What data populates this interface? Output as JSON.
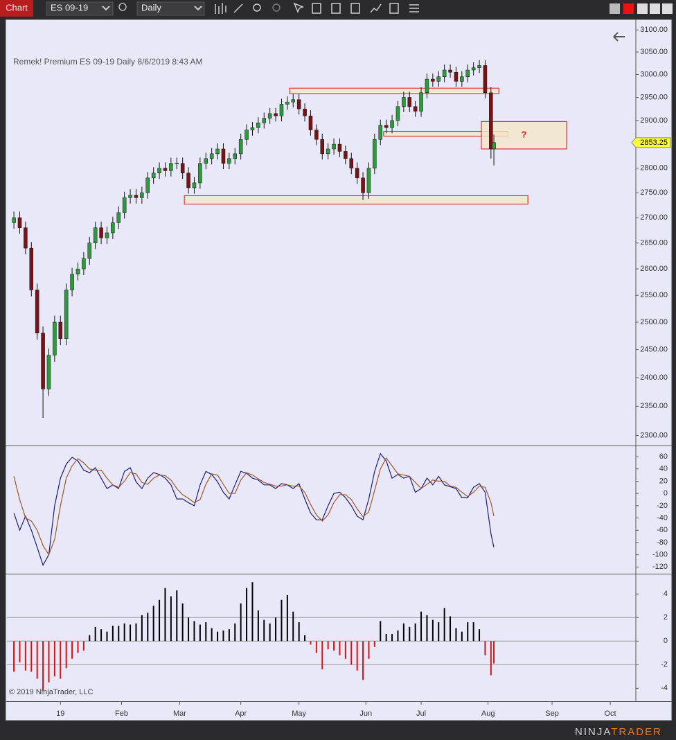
{
  "toolbar": {
    "tab": "Chart",
    "instrument": "ES 09-19",
    "period": "Daily"
  },
  "footer": {
    "copyright": "© 2019 NinjaTrader, LLC",
    "logo_a": "NINJA",
    "logo_b": "TRADER"
  },
  "chart_data": [
    {
      "type": "candlestick",
      "title": "Remek!  Premium  ES 09-19  Daily  8/6/2019 8:43 AM",
      "x": [
        0,
        2,
        4,
        6,
        8,
        10,
        12,
        14,
        16,
        18,
        20,
        22,
        24,
        26,
        28,
        30,
        32,
        34,
        36,
        38,
        40,
        42,
        44,
        46,
        48,
        50,
        52,
        54,
        56,
        58,
        60,
        62,
        64,
        66,
        68,
        70,
        72,
        74,
        76,
        78,
        80,
        82,
        84,
        86,
        88,
        90,
        92,
        94,
        96,
        98,
        100,
        102,
        104,
        106,
        108,
        110,
        112,
        114,
        116,
        118,
        120,
        122,
        124,
        126,
        128,
        130,
        132,
        134,
        136,
        138,
        140,
        142,
        144,
        146,
        148,
        150,
        152,
        154,
        156,
        158,
        160,
        162,
        164,
        165
      ],
      "open": [
        2690,
        2700,
        2680,
        2640,
        2560,
        2480,
        2380,
        2440,
        2500,
        2470,
        2560,
        2590,
        2600,
        2620,
        2650,
        2680,
        2660,
        2670,
        2690,
        2710,
        2740,
        2745,
        2740,
        2750,
        2780,
        2790,
        2800,
        2795,
        2810,
        2810,
        2790,
        2760,
        2770,
        2810,
        2820,
        2830,
        2840,
        2810,
        2820,
        2830,
        2860,
        2880,
        2885,
        2895,
        2905,
        2915,
        2910,
        2935,
        2940,
        2945,
        2925,
        2910,
        2880,
        2860,
        2830,
        2840,
        2850,
        2835,
        2820,
        2800,
        2780,
        2750,
        2800,
        2860,
        2890,
        2885,
        2900,
        2930,
        2950,
        2930,
        2920,
        2960,
        2990,
        2985,
        2995,
        3010,
        3005,
        2985,
        2995,
        3010,
        3015,
        3020,
        2960,
        2840
      ],
      "high": [
        2712,
        2712,
        2692,
        2652,
        2572,
        2492,
        2452,
        2512,
        2512,
        2572,
        2602,
        2612,
        2632,
        2662,
        2692,
        2692,
        2682,
        2702,
        2722,
        2752,
        2757,
        2757,
        2762,
        2792,
        2802,
        2812,
        2812,
        2822,
        2822,
        2822,
        2802,
        2782,
        2822,
        2832,
        2842,
        2852,
        2852,
        2832,
        2842,
        2872,
        2892,
        2897,
        2907,
        2917,
        2927,
        2927,
        2947,
        2952,
        2957,
        2957,
        2937,
        2922,
        2892,
        2872,
        2852,
        2862,
        2862,
        2847,
        2832,
        2812,
        2792,
        2812,
        2872,
        2902,
        2902,
        2912,
        2942,
        2962,
        2962,
        2942,
        2972,
        3002,
        3002,
        3007,
        3022,
        3022,
        3017,
        3007,
        3022,
        3027,
        3032,
        3032,
        2972,
        2870
      ],
      "low": [
        2678,
        2668,
        2628,
        2548,
        2468,
        2330,
        2368,
        2428,
        2458,
        2458,
        2548,
        2578,
        2588,
        2608,
        2638,
        2648,
        2648,
        2658,
        2678,
        2698,
        2728,
        2728,
        2728,
        2738,
        2768,
        2778,
        2783,
        2783,
        2798,
        2778,
        2748,
        2748,
        2758,
        2798,
        2808,
        2818,
        2798,
        2798,
        2808,
        2818,
        2848,
        2868,
        2873,
        2883,
        2893,
        2898,
        2898,
        2923,
        2928,
        2913,
        2898,
        2868,
        2848,
        2818,
        2818,
        2828,
        2823,
        2808,
        2788,
        2768,
        2735,
        2738,
        2788,
        2848,
        2873,
        2873,
        2888,
        2918,
        2918,
        2908,
        2908,
        2948,
        2973,
        2973,
        2983,
        2993,
        2973,
        2973,
        2983,
        2998,
        3003,
        2948,
        2820,
        2806
      ],
      "close": [
        2700,
        2680,
        2640,
        2560,
        2480,
        2380,
        2440,
        2500,
        2470,
        2560,
        2590,
        2600,
        2620,
        2650,
        2680,
        2660,
        2670,
        2690,
        2710,
        2740,
        2745,
        2740,
        2750,
        2780,
        2790,
        2800,
        2795,
        2810,
        2810,
        2790,
        2760,
        2770,
        2810,
        2820,
        2830,
        2840,
        2810,
        2820,
        2830,
        2860,
        2880,
        2885,
        2895,
        2905,
        2915,
        2910,
        2935,
        2940,
        2945,
        2925,
        2910,
        2880,
        2860,
        2830,
        2840,
        2850,
        2835,
        2820,
        2800,
        2780,
        2750,
        2800,
        2860,
        2890,
        2885,
        2900,
        2930,
        2950,
        2930,
        2920,
        2960,
        2990,
        2985,
        2995,
        3010,
        3005,
        2985,
        2995,
        3010,
        3015,
        3020,
        2960,
        2840,
        2853.25
      ],
      "up_color": "#2f9a3c",
      "down_color": "#7a1414",
      "wick_color": "#111111",
      "last_price": 2853.25,
      "last_price_color": "#ffff33",
      "zones": [
        {
          "x": [
            94.8,
            166.7
          ],
          "y": [
            2958,
            2970
          ]
        },
        {
          "x": [
            127.1,
            169.8
          ],
          "y": [
            2867,
            2877
          ]
        },
        {
          "x": [
            58.6,
            176.7
          ],
          "y": [
            2727,
            2744
          ]
        },
        {
          "x": [
            160.7,
            190
          ],
          "y": [
            2840,
            2898
          ],
          "label": "?"
        }
      ],
      "zone_fill": "#f2e6c8",
      "zone_stroke": "#d11a1a",
      "log_scale": true,
      "xlim": [
        -2.4,
        213.8
      ],
      "xticks": [
        {
          "value": 16,
          "label": "19"
        },
        {
          "value": 37,
          "label": "Feb"
        },
        {
          "value": 57,
          "label": "Mar"
        },
        {
          "value": 78,
          "label": "Apr"
        },
        {
          "value": 98,
          "label": "May"
        },
        {
          "value": 121,
          "label": "Jun"
        },
        {
          "value": 140,
          "label": "Jul"
        },
        {
          "value": 163,
          "label": "Aug"
        },
        {
          "value": 185,
          "label": "Sep"
        },
        {
          "value": 205,
          "label": "Oct"
        }
      ],
      "ylim": [
        2283,
        3121
      ],
      "yticks": [
        {
          "value": 3100,
          "label": "3100.00"
        },
        {
          "value": 3050,
          "label": "3050.00"
        },
        {
          "value": 3000,
          "label": "3000.00"
        },
        {
          "value": 2950,
          "label": "2950.00"
        },
        {
          "value": 2900,
          "label": "2900.00"
        },
        {
          "value": 2850,
          "label": "2850.00"
        },
        {
          "value": 2800,
          "label": "2800.00"
        },
        {
          "value": 2750,
          "label": "2750.00"
        },
        {
          "value": 2700,
          "label": "2700.00"
        },
        {
          "value": 2650,
          "label": "2650.00"
        },
        {
          "value": 2600,
          "label": "2600.00"
        },
        {
          "value": 2550,
          "label": "2550.00"
        },
        {
          "value": 2500,
          "label": "2500.00"
        },
        {
          "value": 2450,
          "label": "2450.00"
        },
        {
          "value": 2400,
          "label": "2400.00"
        },
        {
          "value": 2350,
          "label": "2350.00"
        },
        {
          "value": 2300,
          "label": "2300.00"
        }
      ]
    },
    {
      "type": "line",
      "series": [
        {
          "color": "#1c1c7a",
          "values": [
            -32,
            -60,
            -37,
            -60,
            -88,
            -117,
            -100,
            -20,
            25,
            48,
            59,
            53,
            38,
            34,
            42,
            25,
            8,
            14,
            8,
            36,
            42,
            19,
            8,
            25,
            34,
            31,
            25,
            14,
            -9,
            -9,
            -15,
            -20,
            14,
            36,
            31,
            19,
            2,
            -9,
            14,
            36,
            33,
            25,
            22,
            14,
            14,
            8,
            16,
            14,
            8,
            16,
            -9,
            -32,
            -43,
            -43,
            -20,
            0,
            2,
            -7,
            -20,
            -37,
            -43,
            -9,
            36,
            65,
            53,
            25,
            31,
            25,
            28,
            2,
            8,
            25,
            14,
            28,
            14,
            11,
            8,
            -7,
            -7,
            10,
            16,
            2,
            -66,
            -88
          ]
        },
        {
          "color": "#a0562a",
          "values": [
            28,
            -10,
            -40,
            -45,
            -60,
            -85,
            -100,
            -75,
            -20,
            25,
            45,
            57,
            50,
            40,
            38,
            38,
            25,
            14,
            10,
            20,
            34,
            32,
            18,
            15,
            25,
            30,
            29,
            22,
            8,
            -2,
            -8,
            -15,
            -10,
            15,
            32,
            30,
            15,
            0,
            0,
            22,
            34,
            30,
            24,
            18,
            15,
            12,
            12,
            14,
            12,
            12,
            2,
            -18,
            -35,
            -45,
            -35,
            -15,
            -2,
            -2,
            -10,
            -25,
            -38,
            -30,
            5,
            40,
            58,
            45,
            32,
            30,
            28,
            18,
            8,
            15,
            22,
            20,
            20,
            12,
            10,
            2,
            -5,
            2,
            12,
            10,
            -15,
            -37
          ]
        }
      ],
      "ylim": [
        -131,
        76
      ],
      "yticks": [
        60,
        40,
        20,
        0,
        -20,
        -40,
        -60,
        -80,
        -100,
        -120
      ]
    },
    {
      "type": "histogram",
      "values": [
        -2.6,
        -1.8,
        -2.5,
        -2.6,
        -3.2,
        -4.2,
        -3.5,
        -3,
        -3.2,
        -2.3,
        -1.5,
        -1,
        -0.8,
        0.5,
        1.2,
        1,
        0.8,
        1.3,
        1.3,
        1.5,
        1.4,
        1.5,
        2.2,
        2.4,
        3,
        3.5,
        4.5,
        3.8,
        4.3,
        3.2,
        2,
        1.7,
        1.4,
        1.6,
        1.1,
        0.8,
        0.9,
        1,
        1.5,
        3.2,
        4.5,
        5,
        2.6,
        1.8,
        1.5,
        2,
        3.5,
        3.9,
        2.5,
        1.6,
        0.5,
        -0.3,
        -1,
        -2.4,
        -0.7,
        -0.8,
        -1.2,
        -1.5,
        -2,
        -2.5,
        -3.3,
        -1.5,
        -0.5,
        1.7,
        0.6,
        0.6,
        0.9,
        1.5,
        1.2,
        1.5,
        2.5,
        2.2,
        1.8,
        1.6,
        2.8,
        2.1,
        1.1,
        0.8,
        1.6,
        1.6,
        1,
        -1.2,
        -2.9,
        -1.9
      ],
      "up_color": "#000000",
      "down_color": "#e01010",
      "reference_lines": [
        2,
        0,
        -2
      ],
      "ylim": [
        -5.1,
        5.6
      ],
      "yticks": [
        4,
        2,
        0,
        -2,
        -4
      ]
    }
  ]
}
